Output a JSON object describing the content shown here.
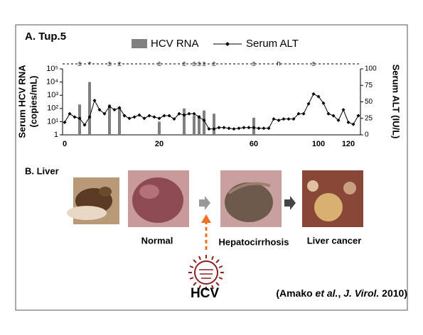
{
  "chart_data": {
    "type": "bar_line",
    "title": "A. Tup.5",
    "y_label": [
      "Serum HCV RNA",
      "(copies/mL)"
    ],
    "y2_label": "Serum ALT (IU/L)",
    "categories": [
      "0",
      null,
      null,
      null,
      null,
      null,
      null,
      null,
      null,
      null,
      null,
      null,
      null,
      null,
      null,
      null,
      null,
      null,
      null,
      "20",
      null,
      null,
      null,
      null,
      null,
      null,
      null,
      null,
      null,
      null,
      null,
      null,
      null,
      null,
      null,
      null,
      null,
      null,
      "60",
      null,
      null,
      null,
      null,
      null,
      null,
      null,
      null,
      null,
      null,
      null,
      null,
      "100",
      null,
      null,
      null,
      null,
      null,
      "120",
      null,
      null
    ],
    "series": [
      {
        "name": "HCV RNA",
        "type": "bar",
        "color": "#808080",
        "values": [
          null,
          null,
          null,
          200,
          null,
          10000,
          null,
          null,
          null,
          200,
          null,
          100,
          null,
          null,
          null,
          null,
          null,
          null,
          null,
          10,
          null,
          null,
          null,
          null,
          100,
          null,
          30,
          30,
          70,
          null,
          40,
          null,
          null,
          null,
          null,
          null,
          null,
          null,
          20,
          null,
          null,
          null,
          null,
          null,
          null,
          null,
          null,
          null,
          null,
          null,
          null,
          null,
          null,
          null,
          null,
          null,
          null,
          null,
          null,
          null
        ]
      },
      {
        "name": "Serum ALT",
        "type": "line",
        "axis": "y2",
        "color": "#000000",
        "values": [
          19,
          32,
          27,
          25,
          15,
          27,
          52,
          38,
          32,
          43,
          38,
          41,
          29,
          25,
          27,
          30,
          25,
          29,
          27,
          25,
          29,
          29,
          24,
          32,
          30,
          32,
          32,
          27,
          22,
          9,
          9,
          11,
          11,
          10,
          9,
          10,
          11,
          11,
          11,
          10,
          10,
          10,
          24,
          22,
          24,
          24,
          24,
          32,
          32,
          47,
          62,
          58,
          48,
          32,
          29,
          22,
          38,
          19,
          16,
          29
        ]
      }
    ],
    "ylim": [
      1,
      100000
    ],
    "log_y": true,
    "yticks": [
      1,
      {
        "value": 10,
        "label": "10¹"
      },
      {
        "value": 100,
        "label": "10²"
      },
      {
        "value": 1000,
        "label": "10³"
      },
      {
        "value": 10000,
        "label": "10⁴"
      },
      {
        "value": 100000,
        "label": "10⁵"
      }
    ],
    "y2lim": [
      0,
      100
    ],
    "y2ticks": [
      0,
      25,
      50,
      75,
      100
    ],
    "annotations": [
      {
        "at": 3,
        "text": "±"
      },
      {
        "at": 5,
        "text": "+"
      },
      {
        "at": 9,
        "text": "±"
      },
      {
        "at": 11,
        "text": "±"
      },
      {
        "at": 19,
        "text": "±"
      },
      {
        "at": 24,
        "text": "±"
      },
      {
        "at": 26,
        "text": "±"
      },
      {
        "at": 27,
        "text": "±"
      },
      {
        "at": 28,
        "text": "±"
      },
      {
        "at": 30,
        "text": "±"
      },
      {
        "at": 38,
        "text": "±"
      },
      {
        "at": 43,
        "text": "n"
      },
      {
        "at": 50,
        "text": "±"
      }
    ]
  },
  "panel_b": {
    "label": "B. Liver",
    "stages": [
      "Normal",
      "Hepatocirrhosis",
      "Liver cancer"
    ],
    "virus": "HCV"
  },
  "citation": [
    "(Amako ",
    "et al.",
    ", ",
    "J. Virol.",
    " 2010)"
  ]
}
